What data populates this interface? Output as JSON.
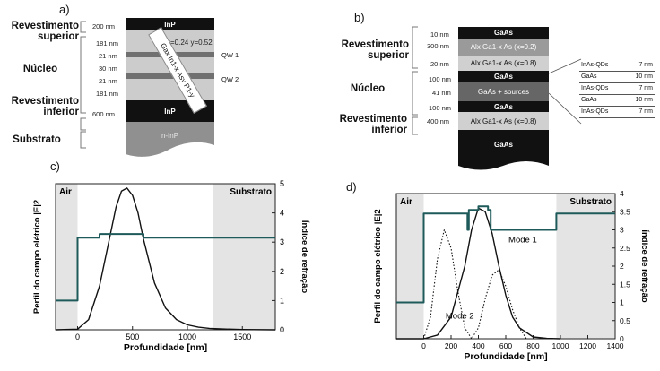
{
  "panel_a": {
    "letter": "a)",
    "labels": [
      "Revestimento superior",
      "Núcleo",
      "Revestimento inferior",
      "Substrato"
    ],
    "layers": [
      {
        "thickness": "200 nm",
        "name": "InP",
        "color": "#111111"
      },
      {
        "thickness": "181 nm",
        "name": "",
        "color": "#cccccc"
      },
      {
        "thickness": "21 nm",
        "name": "",
        "color": "#707070"
      },
      {
        "thickness": "30 nm",
        "name": "",
        "color": "#cccccc"
      },
      {
        "thickness": "21 nm",
        "name": "",
        "color": "#707070"
      },
      {
        "thickness": "181 nm",
        "name": "",
        "color": "#cccccc"
      },
      {
        "thickness": "600 nm",
        "name": "InP",
        "color": "#111111"
      },
      {
        "thickness": "",
        "name": "n-InP",
        "color": "#909090"
      }
    ],
    "composition": "x=0.24 y=0.52",
    "formula": "Gax In1-x Asy P1-y",
    "qw_labels": [
      "QW 1",
      "QW 2"
    ]
  },
  "panel_b": {
    "letter": "b)",
    "labels": [
      "Revestimento superior",
      "Núcleo",
      "Revestimento inferior"
    ],
    "layers": [
      {
        "thickness": "10 nm",
        "name": "GaAs",
        "color": "#111111"
      },
      {
        "thickness": "300 nm",
        "name": "Alx Ga1-x As (x=0.2)",
        "color": "#9a9a9a"
      },
      {
        "thickness": "20 nm",
        "name": "Alx Ga1-x As (x=0.8)",
        "color": "#d0d0d0"
      },
      {
        "thickness": "100 nm",
        "name": "GaAs",
        "color": "#111111"
      },
      {
        "thickness": "41 nm",
        "name": "GaAs + sources",
        "color": "#666666"
      },
      {
        "thickness": "100 nm",
        "name": "GaAs",
        "color": "#111111"
      },
      {
        "thickness": "400 nm",
        "name": "Alx Ga1-x As (x=0.8)",
        "color": "#d0d0d0"
      },
      {
        "thickness": "",
        "name": "GaAs",
        "color": "#111111"
      }
    ],
    "table": [
      {
        "material": "InAs-QDs",
        "thickness": "7 nm"
      },
      {
        "material": "GaAs",
        "thickness": "10 nm"
      },
      {
        "material": "InAs-QDs",
        "thickness": "7 nm"
      },
      {
        "material": "GaAs",
        "thickness": "10 nm"
      },
      {
        "material": "InAs-QDs",
        "thickness": "7 nm"
      }
    ]
  },
  "chart_data": [
    {
      "panel": "c)",
      "type": "line",
      "xlabel": "Profundidade [nm]",
      "ylabel": "Perfil do campo elétrico |E|2",
      "y2label": "Índice de refração",
      "xlim": [
        -200,
        1800
      ],
      "ylim": [
        0,
        5
      ],
      "y2lim": [
        0,
        5
      ],
      "xticks": [
        0,
        500,
        1000,
        1500
      ],
      "yticks": [
        0,
        1,
        2,
        3,
        4,
        5
      ],
      "region_labels": [
        "Air",
        "Substrato"
      ],
      "shaded_regions": [
        [
          -200,
          0
        ],
        [
          1230,
          1800
        ]
      ],
      "series": [
        {
          "kind": "field",
          "style": "solid-black",
          "x": [
            -200,
            0,
            100,
            200,
            300,
            350,
            400,
            450,
            500,
            550,
            600,
            700,
            800,
            900,
            1000,
            1100,
            1200,
            1300,
            1500,
            1800
          ],
          "y": [
            0.0,
            0.02,
            0.35,
            1.5,
            3.3,
            4.2,
            4.75,
            4.85,
            4.6,
            4.0,
            3.1,
            1.6,
            0.75,
            0.35,
            0.17,
            0.09,
            0.05,
            0.03,
            0.01,
            0.0
          ]
        },
        {
          "kind": "index",
          "style": "solid-teal",
          "x": [
            -200,
            0,
            0,
            200,
            200,
            600,
            600,
            1800
          ],
          "y": [
            1.0,
            1.0,
            3.15,
            3.15,
            3.28,
            3.28,
            3.15,
            3.15
          ]
        }
      ]
    },
    {
      "panel": "d)",
      "type": "line",
      "xlabel": "Profundidade [nm]",
      "ylabel": "Perfil do campo elétrico |E|2",
      "y2label": "Índice de refração",
      "xlim": [
        -200,
        1400
      ],
      "ylim": [
        0,
        4
      ],
      "y2lim": [
        0,
        4
      ],
      "xticks": [
        0,
        200,
        400,
        600,
        800,
        1000,
        1200,
        1400
      ],
      "yticks": [
        0,
        0.5,
        1,
        1.5,
        2,
        2.5,
        3,
        3.5,
        4
      ],
      "region_labels": [
        "Air",
        "Substrato"
      ],
      "shaded_regions": [
        [
          -200,
          0
        ],
        [
          970,
          1400
        ]
      ],
      "annotations": [
        "Mode 1",
        "Mode 2"
      ],
      "series": [
        {
          "kind": "mode1",
          "style": "solid-black",
          "x": [
            -200,
            0,
            100,
            200,
            300,
            350,
            400,
            450,
            500,
            550,
            600,
            650,
            700,
            800,
            900,
            1000
          ],
          "y": [
            0.0,
            0.0,
            0.1,
            0.6,
            2.0,
            3.0,
            3.6,
            3.5,
            2.9,
            2.0,
            1.2,
            0.6,
            0.3,
            0.05,
            0.01,
            0.0
          ]
        },
        {
          "kind": "mode2",
          "style": "dotted-black",
          "x": [
            0,
            50,
            100,
            150,
            200,
            250,
            300,
            350,
            400,
            450,
            500,
            550,
            600,
            650,
            700,
            750
          ],
          "y": [
            0.0,
            0.6,
            2.2,
            3.0,
            2.5,
            1.3,
            0.3,
            0.0,
            0.3,
            1.1,
            1.75,
            1.9,
            1.45,
            0.8,
            0.3,
            0.0
          ]
        },
        {
          "kind": "index",
          "style": "solid-teal",
          "x": [
            -200,
            0,
            0,
            320,
            320,
            330,
            330,
            400,
            400,
            470,
            470,
            490,
            490,
            590,
            590,
            970,
            970,
            1400
          ],
          "y": [
            1.0,
            1.0,
            3.45,
            3.45,
            3.0,
            3.0,
            3.55,
            3.55,
            3.65,
            3.65,
            3.55,
            3.55,
            3.0,
            3.0,
            3.0,
            3.0,
            3.45,
            3.45
          ]
        }
      ]
    }
  ]
}
